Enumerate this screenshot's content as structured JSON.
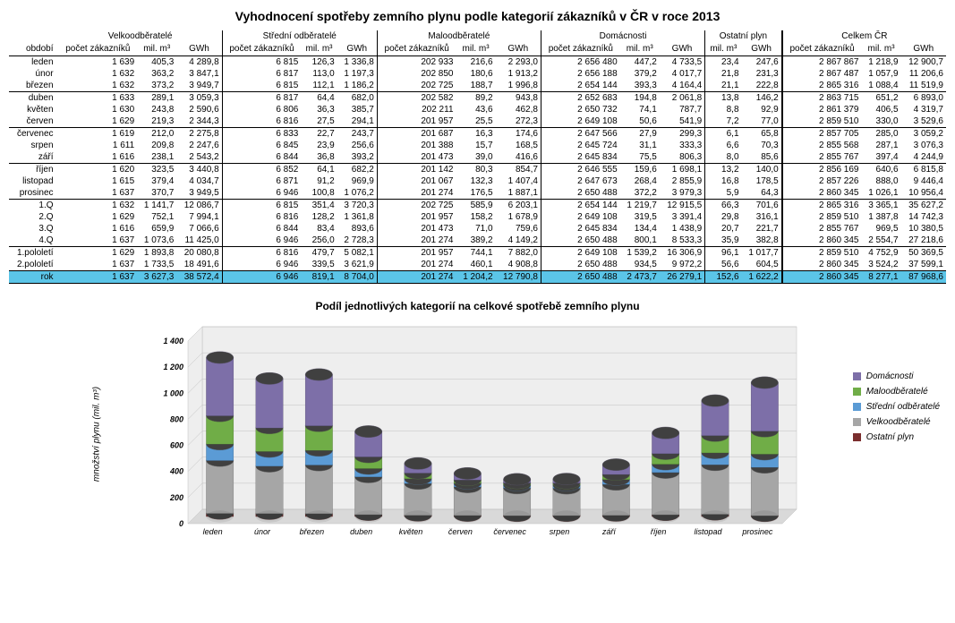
{
  "title": "Vyhodnocení spotřeby zemního plynu podle kategorií zákazníků v ČR v roce 2013",
  "groups": [
    "Velkoodběratelé",
    "Střední odběratelé",
    "Maloodběratelé",
    "Domácnosti",
    "Ostatní plyn",
    "Celkem ČR"
  ],
  "subcols_full": [
    "počet zákazníků",
    "mil. m³",
    "GWh"
  ],
  "subcols_op": [
    "mil. m³",
    "GWh"
  ],
  "period_label": "období",
  "rows": [
    {
      "p": "leden",
      "c": [
        "1 639",
        "405,3",
        "4 289,8",
        "6 815",
        "126,3",
        "1 336,8",
        "202 933",
        "216,6",
        "2 293,0",
        "2 656 480",
        "447,2",
        "4 733,5",
        "23,4",
        "247,6",
        "2 867 867",
        "1 218,9",
        "12 900,7"
      ]
    },
    {
      "p": "únor",
      "c": [
        "1 632",
        "363,2",
        "3 847,1",
        "6 817",
        "113,0",
        "1 197,3",
        "202 850",
        "180,6",
        "1 913,2",
        "2 656 188",
        "379,2",
        "4 017,7",
        "21,8",
        "231,3",
        "2 867 487",
        "1 057,9",
        "11 206,6"
      ]
    },
    {
      "p": "březen",
      "c": [
        "1 632",
        "373,2",
        "3 949,7",
        "6 815",
        "112,1",
        "1 186,2",
        "202 725",
        "188,7",
        "1 996,8",
        "2 654 144",
        "393,3",
        "4 164,4",
        "21,1",
        "222,8",
        "2 865 316",
        "1 088,4",
        "11 519,9"
      ]
    },
    {
      "p": "duben",
      "sep": true,
      "c": [
        "1 633",
        "289,1",
        "3 059,3",
        "6 817",
        "64,4",
        "682,0",
        "202 582",
        "89,2",
        "943,8",
        "2 652 683",
        "194,8",
        "2 061,8",
        "13,8",
        "146,2",
        "2 863 715",
        "651,2",
        "6 893,0"
      ]
    },
    {
      "p": "květen",
      "c": [
        "1 630",
        "243,8",
        "2 590,6",
        "6 806",
        "36,3",
        "385,7",
        "202 211",
        "43,6",
        "462,8",
        "2 650 732",
        "74,1",
        "787,7",
        "8,8",
        "92,9",
        "2 861 379",
        "406,5",
        "4 319,7"
      ]
    },
    {
      "p": "červen",
      "c": [
        "1 629",
        "219,3",
        "2 344,3",
        "6 816",
        "27,5",
        "294,1",
        "201 957",
        "25,5",
        "272,3",
        "2 649 108",
        "50,6",
        "541,9",
        "7,2",
        "77,0",
        "2 859 510",
        "330,0",
        "3 529,6"
      ]
    },
    {
      "p": "červenec",
      "sep": true,
      "c": [
        "1 619",
        "212,0",
        "2 275,8",
        "6 833",
        "22,7",
        "243,7",
        "201 687",
        "16,3",
        "174,6",
        "2 647 566",
        "27,9",
        "299,3",
        "6,1",
        "65,8",
        "2 857 705",
        "285,0",
        "3 059,2"
      ]
    },
    {
      "p": "srpen",
      "c": [
        "1 611",
        "209,8",
        "2 247,6",
        "6 845",
        "23,9",
        "256,6",
        "201 388",
        "15,7",
        "168,5",
        "2 645 724",
        "31,1",
        "333,3",
        "6,6",
        "70,3",
        "2 855 568",
        "287,1",
        "3 076,3"
      ]
    },
    {
      "p": "září",
      "c": [
        "1 616",
        "238,1",
        "2 543,2",
        "6 844",
        "36,8",
        "393,2",
        "201 473",
        "39,0",
        "416,6",
        "2 645 834",
        "75,5",
        "806,3",
        "8,0",
        "85,6",
        "2 855 767",
        "397,4",
        "4 244,9"
      ]
    },
    {
      "p": "říjen",
      "sep": true,
      "c": [
        "1 620",
        "323,5",
        "3 440,8",
        "6 852",
        "64,1",
        "682,2",
        "201 142",
        "80,3",
        "854,7",
        "2 646 555",
        "159,6",
        "1 698,1",
        "13,2",
        "140,0",
        "2 856 169",
        "640,6",
        "6 815,8"
      ]
    },
    {
      "p": "listopad",
      "c": [
        "1 615",
        "379,4",
        "4 034,7",
        "6 871",
        "91,2",
        "969,9",
        "201 067",
        "132,3",
        "1 407,4",
        "2 647 673",
        "268,4",
        "2 855,9",
        "16,8",
        "178,5",
        "2 857 226",
        "888,0",
        "9 446,4"
      ]
    },
    {
      "p": "prosinec",
      "c": [
        "1 637",
        "370,7",
        "3 949,5",
        "6 946",
        "100,8",
        "1 076,2",
        "201 274",
        "176,5",
        "1 887,1",
        "2 650 488",
        "372,2",
        "3 979,3",
        "5,9",
        "64,3",
        "2 860 345",
        "1 026,1",
        "10 956,4"
      ]
    },
    {
      "p": "1.Q",
      "sep": true,
      "c": [
        "1 632",
        "1 141,7",
        "12 086,7",
        "6 815",
        "351,4",
        "3 720,3",
        "202 725",
        "585,9",
        "6 203,1",
        "2 654 144",
        "1 219,7",
        "12 915,5",
        "66,3",
        "701,6",
        "2 865 316",
        "3 365,1",
        "35 627,2"
      ]
    },
    {
      "p": "2.Q",
      "c": [
        "1 629",
        "752,1",
        "7 994,1",
        "6 816",
        "128,2",
        "1 361,8",
        "201 957",
        "158,2",
        "1 678,9",
        "2 649 108",
        "319,5",
        "3 391,4",
        "29,8",
        "316,1",
        "2 859 510",
        "1 387,8",
        "14 742,3"
      ]
    },
    {
      "p": "3.Q",
      "c": [
        "1 616",
        "659,9",
        "7 066,6",
        "6 844",
        "83,4",
        "893,6",
        "201 473",
        "71,0",
        "759,6",
        "2 645 834",
        "134,4",
        "1 438,9",
        "20,7",
        "221,7",
        "2 855 767",
        "969,5",
        "10 380,5"
      ]
    },
    {
      "p": "4.Q",
      "c": [
        "1 637",
        "1 073,6",
        "11 425,0",
        "6 946",
        "256,0",
        "2 728,3",
        "201 274",
        "389,2",
        "4 149,2",
        "2 650 488",
        "800,1",
        "8 533,3",
        "35,9",
        "382,8",
        "2 860 345",
        "2 554,7",
        "27 218,6"
      ]
    },
    {
      "p": "1.pololetí",
      "sep": true,
      "c": [
        "1 629",
        "1 893,8",
        "20 080,8",
        "6 816",
        "479,7",
        "5 082,1",
        "201 957",
        "744,1",
        "7 882,0",
        "2 649 108",
        "1 539,2",
        "16 306,9",
        "96,1",
        "1 017,7",
        "2 859 510",
        "4 752,9",
        "50 369,5"
      ]
    },
    {
      "p": "2.pololetí",
      "c": [
        "1 637",
        "1 733,5",
        "18 491,6",
        "6 946",
        "339,5",
        "3 621,9",
        "201 274",
        "460,1",
        "4 908,8",
        "2 650 488",
        "934,5",
        "9 972,2",
        "56,6",
        "604,5",
        "2 860 345",
        "3 524,2",
        "37 599,1"
      ]
    },
    {
      "p": "rok",
      "year": true,
      "c": [
        "1 637",
        "3 627,3",
        "38 572,4",
        "6 946",
        "819,1",
        "8 704,0",
        "201 274",
        "1 204,2",
        "12 790,8",
        "2 650 488",
        "2 473,7",
        "26 279,1",
        "152,6",
        "1 622,2",
        "2 860 345",
        "8 277,1",
        "87 968,6"
      ]
    }
  ],
  "chart": {
    "title": "Podíl jednotlivých kategorií na celkové spotřebě zemního plynu",
    "ylabel": "množství plynu (mil. m³)",
    "ymax": 1400,
    "ystep": 200,
    "categories": [
      "leden",
      "únor",
      "březen",
      "duben",
      "květen",
      "červen",
      "červenec",
      "srpen",
      "září",
      "říjen",
      "listopad",
      "prosinec"
    ],
    "series": [
      {
        "name": "Ostatní plyn",
        "color": "#7B2E2E",
        "values": [
          23.4,
          21.8,
          21.1,
          13.8,
          8.8,
          7.2,
          6.1,
          6.6,
          8.0,
          13.2,
          16.8,
          5.9
        ]
      },
      {
        "name": "Velkoodběratelé",
        "color": "#A6A6A6",
        "values": [
          405.3,
          363.2,
          373.2,
          289.1,
          243.8,
          219.3,
          212.0,
          209.8,
          238.1,
          323.5,
          379.4,
          370.7
        ]
      },
      {
        "name": "Střední odběratelé",
        "color": "#5B9BD5",
        "values": [
          126.3,
          113.0,
          112.1,
          64.4,
          36.3,
          27.5,
          22.7,
          23.9,
          36.8,
          64.1,
          91.2,
          100.8
        ]
      },
      {
        "name": "Maloodběratelé",
        "color": "#70AD47",
        "values": [
          216.6,
          180.6,
          188.7,
          89.2,
          43.6,
          25.5,
          16.3,
          15.7,
          39.0,
          80.3,
          132.3,
          176.5
        ]
      },
      {
        "name": "Domácnosti",
        "color": "#7D6FA8",
        "values": [
          447.2,
          379.2,
          393.3,
          194.8,
          74.1,
          50.6,
          27.9,
          31.1,
          75.5,
          159.6,
          268.4,
          372.2
        ]
      }
    ],
    "legend_order": [
      "Domácnosti",
      "Maloodběratelé",
      "Střední odběratelé",
      "Velkoodběratelé",
      "Ostatní plyn"
    ],
    "bg": "#ffffff",
    "grid": "#c0c0c0",
    "floor": "#d9d9d9",
    "wall": "#eeeeee"
  }
}
